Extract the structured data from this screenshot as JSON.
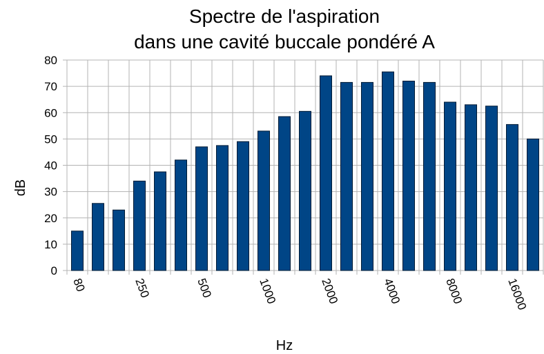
{
  "chart_data": {
    "type": "bar",
    "title": [
      "Spectre de l'aspiration",
      "dans une cavité buccale pondéré A"
    ],
    "x_label": "Hz",
    "y_label": "dB",
    "categories": [
      "80",
      null,
      null,
      "250",
      null,
      null,
      "500",
      null,
      null,
      "1000",
      null,
      null,
      "2000",
      null,
      null,
      "4000",
      null,
      null,
      "8000",
      null,
      null,
      "16000",
      null
    ],
    "values": [
      15,
      25.5,
      23,
      34,
      37.5,
      42,
      47,
      47.5,
      49,
      53,
      58.5,
      60.5,
      74,
      71.5,
      71.5,
      75.5,
      72,
      71.5,
      64,
      63,
      62.5,
      55.5,
      50
    ],
    "color": "#004586",
    "ylim": [
      0,
      80
    ],
    "yticks": [
      0,
      10,
      20,
      30,
      40,
      50,
      60,
      70,
      80
    ],
    "grid": true
  }
}
